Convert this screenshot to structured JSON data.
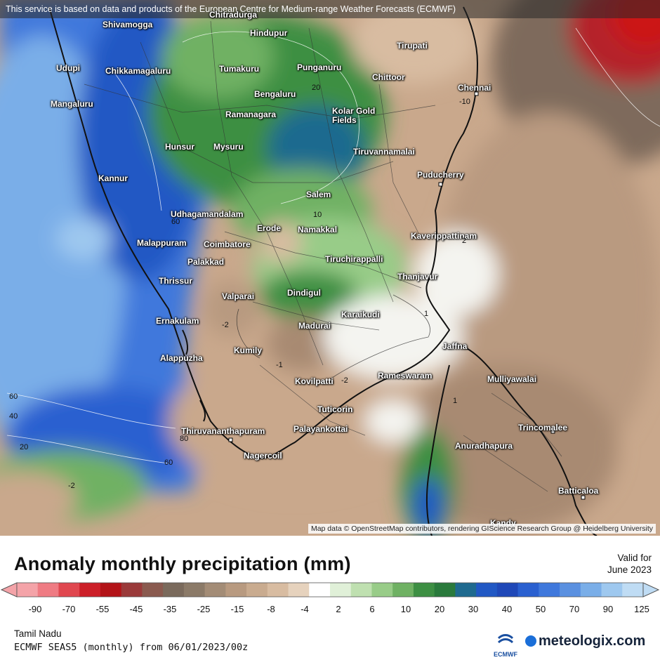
{
  "banner": "This service is based on data and products of the European Centre for Medium-range Weather Forecasts (ECMWF)",
  "attribution": "Map data © OpenStreetMap contributors, rendering GIScience Research Group @ Heidelberg University",
  "title": "Anomaly monthly precipitation (mm)",
  "valid_label": "Valid for",
  "valid_date": "June 2023",
  "region": "Tamil Nadu",
  "model": "ECMWF SEAS5 (monthly) from 06/01/2023/00z",
  "logos": {
    "ecmwf": "ECMWF",
    "meteologix": "meteologix.com"
  },
  "colorbar": {
    "ticks": [
      "-90",
      "-70",
      "-55",
      "-45",
      "-35",
      "-25",
      "-15",
      "-8",
      "-4",
      "2",
      "6",
      "10",
      "20",
      "30",
      "40",
      "50",
      "70",
      "90",
      "125"
    ],
    "colors": [
      "#f4a3a8",
      "#ef7b83",
      "#e0474f",
      "#cc1f28",
      "#b31318",
      "#9a3a3a",
      "#8a5a4f",
      "#7a6a5c",
      "#8b7a68",
      "#a38c76",
      "#b89a80",
      "#c9ab8f",
      "#d8bca1",
      "#e6d2bd",
      "#ffffff",
      "#e0f0d8",
      "#bfe0b0",
      "#98cc88",
      "#6fb163",
      "#3d8f43",
      "#2a7a3c",
      "#1f6a8f",
      "#2158c4",
      "#1f48b8",
      "#2a60d0",
      "#3f78dc",
      "#5a90e0",
      "#7aaee8",
      "#9ec8ef",
      "#bfdcf4"
    ]
  },
  "cities": [
    "Shivamogga",
    "Chitradurga",
    "Hindupur",
    "Tirupati",
    "Udupi",
    "Chikkamagaluru",
    "Tumakuru",
    "Punganuru",
    "Chittoor",
    "Chennai",
    "Mangaluru",
    "Bengaluru",
    "Ramanagara",
    "Kolar Gold",
    "Fields",
    "Hunsur",
    "Mysuru",
    "Tiruvannamalai",
    "Kannur",
    "Puducherry",
    "Salem",
    "Udhagamandalam",
    "Erode",
    "Namakkal",
    "Kaverippattinam",
    "Malappuram",
    "Coimbatore",
    "Palakkad",
    "Tiruchirappalli",
    "Thrissur",
    "Thanjavur",
    "Valparai",
    "Dindigul",
    "Karaikudi",
    "Ernakulam",
    "Madurai",
    "Jaffna",
    "Kumily",
    "Alappuzha",
    "Kovilpatti",
    "Rameswaram",
    "Mulliyawalai",
    "Tuticorin",
    "Trincomalee",
    "Thiruvananthapuram",
    "Palayankottai",
    "Anuradhapura",
    "Nagercoil",
    "Batticaloa",
    "Kandy"
  ],
  "contour_labels": [
    "20",
    "10",
    "-10",
    "2",
    "1",
    "-2",
    "-1",
    "-2",
    "1",
    "60",
    "60",
    "40",
    "20",
    "80",
    "60",
    "-2"
  ]
}
